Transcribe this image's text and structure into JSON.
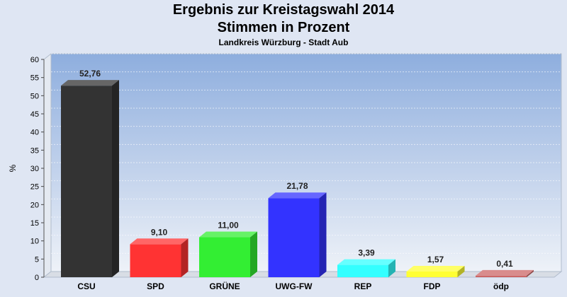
{
  "chart_data": {
    "type": "bar",
    "title": "Ergebnis zur Kreistagswahl 2014",
    "subtitle": "Stimmen in Prozent",
    "subtitle2": "Landkreis Würzburg - Stadt Aub",
    "ylabel": "%",
    "xlabel": "",
    "ylim": [
      0,
      60
    ],
    "ytick_step": 5,
    "grid": true,
    "categories": [
      "CSU",
      "SPD",
      "GRÜNE",
      "UWG-FW",
      "REP",
      "FDP",
      "ödp"
    ],
    "values": [
      52.76,
      9.1,
      11.0,
      21.78,
      3.39,
      1.57,
      0.41
    ],
    "value_labels": [
      "52,76",
      "9,10",
      "11,00",
      "21,78",
      "3,39",
      "1,57",
      "0,41"
    ],
    "colors": [
      "#333333",
      "#ff3333",
      "#33ee33",
      "#3333ff",
      "#33ffff",
      "#ffff33",
      "#cc6666"
    ]
  }
}
